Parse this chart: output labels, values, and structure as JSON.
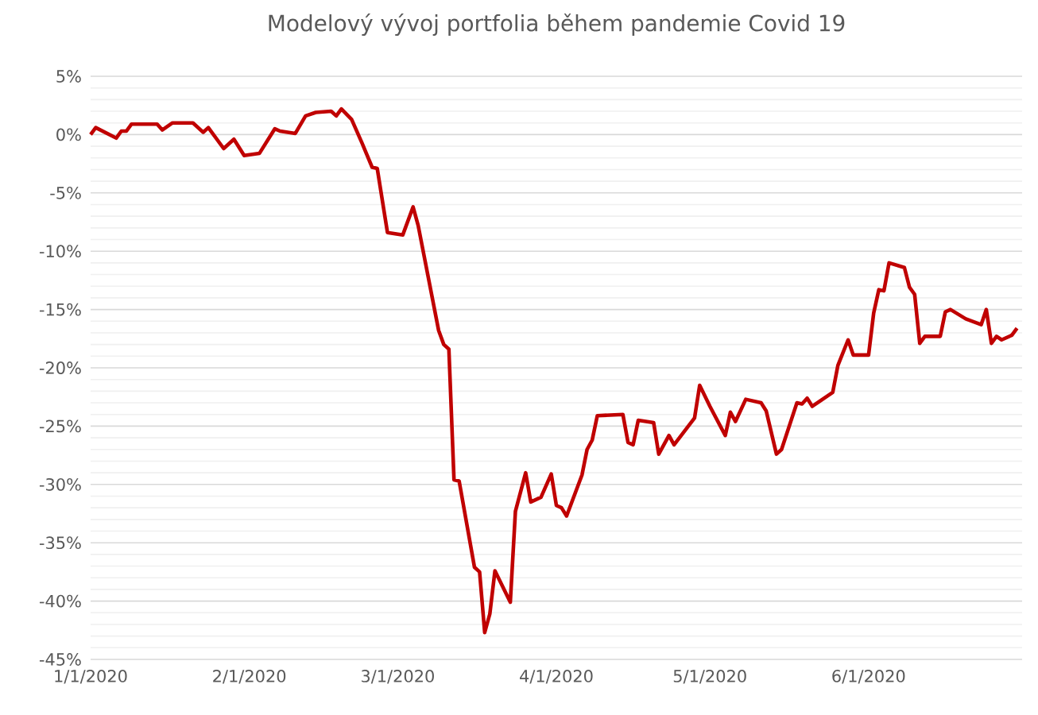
{
  "chart_data": {
    "type": "line",
    "title": "Modelový vývoj portfolia během pandemie Covid 19",
    "x": [
      "2020-01-01",
      "2020-01-02",
      "2020-01-06",
      "2020-01-07",
      "2020-01-08",
      "2020-01-09",
      "2020-01-14",
      "2020-01-15",
      "2020-01-17",
      "2020-01-21",
      "2020-01-23",
      "2020-01-24",
      "2020-01-27",
      "2020-01-29",
      "2020-01-31",
      "2020-02-03",
      "2020-02-06",
      "2020-02-07",
      "2020-02-10",
      "2020-02-12",
      "2020-02-14",
      "2020-02-17",
      "2020-02-18",
      "2020-02-19",
      "2020-02-21",
      "2020-02-23",
      "2020-02-25",
      "2020-02-26",
      "2020-02-28",
      "2020-03-02",
      "2020-03-04",
      "2020-03-05",
      "2020-03-09",
      "2020-03-10",
      "2020-03-11",
      "2020-03-12",
      "2020-03-13",
      "2020-03-16",
      "2020-03-17",
      "2020-03-18",
      "2020-03-19",
      "2020-03-20",
      "2020-03-23",
      "2020-03-24",
      "2020-03-26",
      "2020-03-27",
      "2020-03-29",
      "2020-03-31",
      "2020-04-01",
      "2020-04-02",
      "2020-04-03",
      "2020-04-06",
      "2020-04-07",
      "2020-04-08",
      "2020-04-09",
      "2020-04-14",
      "2020-04-15",
      "2020-04-16",
      "2020-04-17",
      "2020-04-20",
      "2020-04-21",
      "2020-04-23",
      "2020-04-24",
      "2020-04-28",
      "2020-04-29",
      "2020-05-01",
      "2020-05-04",
      "2020-05-05",
      "2020-05-06",
      "2020-05-08",
      "2020-05-11",
      "2020-05-12",
      "2020-05-14",
      "2020-05-15",
      "2020-05-18",
      "2020-05-19",
      "2020-05-20",
      "2020-05-21",
      "2020-05-25",
      "2020-05-26",
      "2020-05-28",
      "2020-05-29",
      "2020-06-01",
      "2020-06-02",
      "2020-06-03",
      "2020-06-04",
      "2020-06-05",
      "2020-06-08",
      "2020-06-09",
      "2020-06-10",
      "2020-06-11",
      "2020-06-12",
      "2020-06-15",
      "2020-06-16",
      "2020-06-17",
      "2020-06-20",
      "2020-06-23",
      "2020-06-24",
      "2020-06-25",
      "2020-06-26",
      "2020-06-27",
      "2020-06-29",
      "2020-06-30"
    ],
    "series": [
      {
        "color": "#c00000",
        "values": [
          0.0,
          0.6,
          -0.3,
          0.3,
          0.3,
          0.9,
          0.9,
          0.4,
          1.0,
          1.0,
          0.2,
          0.6,
          -1.2,
          -0.4,
          -1.8,
          -1.6,
          0.5,
          0.3,
          0.1,
          1.6,
          1.9,
          2.0,
          1.6,
          2.2,
          1.3,
          -0.7,
          -2.8,
          -2.9,
          -8.4,
          -8.6,
          -6.2,
          -7.8,
          -16.8,
          -18.0,
          -18.4,
          -29.6,
          -29.7,
          -37.1,
          -37.5,
          -42.7,
          -41.1,
          -37.4,
          -40.1,
          -32.3,
          -29.0,
          -31.5,
          -31.1,
          -29.1,
          -31.8,
          -32.0,
          -32.7,
          -29.2,
          -27.0,
          -26.2,
          -24.1,
          -24.0,
          -26.4,
          -26.6,
          -24.5,
          -24.7,
          -27.4,
          -25.8,
          -26.6,
          -24.3,
          -21.5,
          -23.3,
          -25.8,
          -23.8,
          -24.6,
          -22.7,
          -23.0,
          -23.7,
          -27.4,
          -27.0,
          -23.0,
          -23.1,
          -22.6,
          -23.3,
          -22.1,
          -19.8,
          -17.6,
          -18.9,
          -18.9,
          -15.3,
          -13.3,
          -13.4,
          -11.0,
          -11.4,
          -13.1,
          -13.7,
          -17.9,
          -17.3,
          -17.3,
          -15.2,
          -15.0,
          -15.8,
          -16.3,
          -15.0,
          -17.9,
          -17.3,
          -17.6,
          -17.2,
          -16.6
        ]
      }
    ],
    "xlim": [
      "2020-01-01",
      "2020-07-01"
    ],
    "xticks": [
      {
        "value": "2020-01-01",
        "label": "1/1/2020"
      },
      {
        "value": "2020-02-01",
        "label": "2/1/2020"
      },
      {
        "value": "2020-03-01",
        "label": "3/1/2020"
      },
      {
        "value": "2020-04-01",
        "label": "4/1/2020"
      },
      {
        "value": "2020-05-01",
        "label": "5/1/2020"
      },
      {
        "value": "2020-06-01",
        "label": "6/1/2020"
      }
    ],
    "ylim": [
      -45,
      5
    ],
    "yticks": [
      {
        "value": 5,
        "label": "5%"
      },
      {
        "value": 0,
        "label": "0%"
      },
      {
        "value": -5,
        "label": "-5%"
      },
      {
        "value": -10,
        "label": "-10%"
      },
      {
        "value": -15,
        "label": "-15%"
      },
      {
        "value": -20,
        "label": "-20%"
      },
      {
        "value": -25,
        "label": "-25%"
      },
      {
        "value": -30,
        "label": "-30%"
      },
      {
        "value": -35,
        "label": "-35%"
      },
      {
        "value": -40,
        "label": "-40%"
      },
      {
        "value": -45,
        "label": "-45%"
      }
    ],
    "grid": "y",
    "marker": "none",
    "line_style": "solid"
  }
}
